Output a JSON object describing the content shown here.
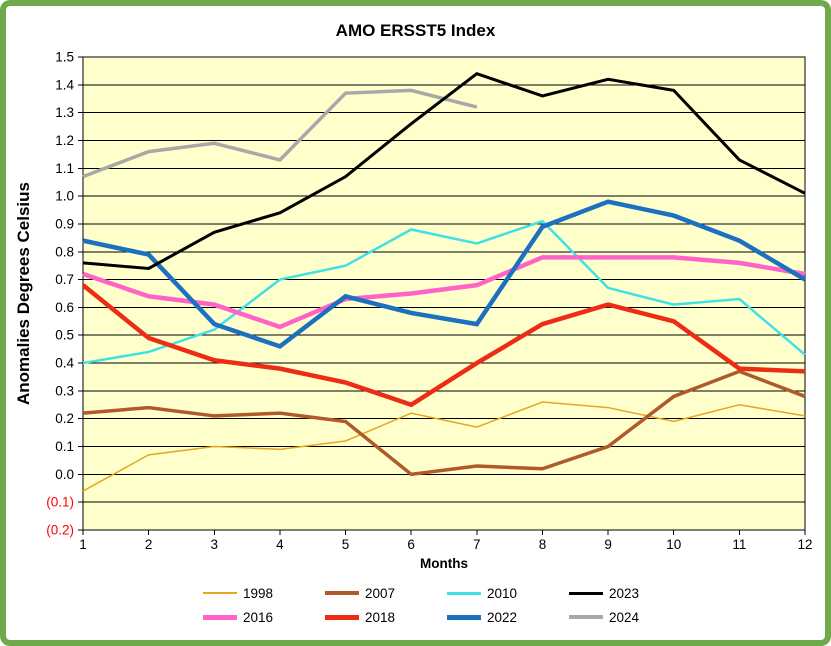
{
  "chart_data": {
    "type": "line",
    "title": "AMO ERSST5 Index",
    "xlabel": "Months",
    "ylabel": "Anomalies Degrees Celsius",
    "x": [
      1,
      2,
      3,
      4,
      5,
      6,
      7,
      8,
      9,
      10,
      11,
      12
    ],
    "ylim": [
      -0.2,
      1.5
    ],
    "ytick_step": 0.1,
    "y_tick_labels": [
      "1.5",
      "1.4",
      "1.3",
      "1.2",
      "1.1",
      "1.0",
      "0.9",
      "0.8",
      "0.7",
      "0.6",
      "0.5",
      "0.4",
      "0.3",
      "0.2",
      "0.1",
      "0.0",
      "(0.1)",
      "(0.2)"
    ],
    "negative_tick_color": "#FF0000",
    "plot_bg": "#FFFFCC",
    "grid": true,
    "grid_color": "#000000",
    "legend_position": "bottom",
    "series": [
      {
        "name": "1998",
        "color": "#E3A820",
        "width": 1.5,
        "values": [
          -0.06,
          0.07,
          0.1,
          0.09,
          0.12,
          0.22,
          0.17,
          0.26,
          0.24,
          0.19,
          0.25,
          0.21
        ]
      },
      {
        "name": "2007",
        "color": "#B05A2B",
        "width": 3.5,
        "values": [
          0.22,
          0.24,
          0.21,
          0.22,
          0.19,
          0.0,
          0.03,
          0.02,
          0.1,
          0.28,
          0.37,
          0.28
        ]
      },
      {
        "name": "2010",
        "color": "#3FE0E6",
        "width": 2.5,
        "values": [
          0.4,
          0.44,
          0.52,
          0.7,
          0.75,
          0.88,
          0.83,
          0.91,
          0.67,
          0.61,
          0.63,
          0.43
        ]
      },
      {
        "name": "2016",
        "color": "#FF63C8",
        "width": 4.5,
        "values": [
          0.72,
          0.64,
          0.61,
          0.53,
          0.63,
          0.65,
          0.68,
          0.78,
          0.78,
          0.78,
          0.76,
          0.72
        ]
      },
      {
        "name": "2018",
        "color": "#ED2C16",
        "width": 4.5,
        "values": [
          0.68,
          0.49,
          0.41,
          0.38,
          0.33,
          0.25,
          0.4,
          0.54,
          0.61,
          0.55,
          0.38,
          0.37
        ]
      },
      {
        "name": "2022",
        "color": "#1C70BF",
        "width": 4.5,
        "values": [
          0.84,
          0.79,
          0.54,
          0.46,
          0.64,
          0.58,
          0.54,
          0.89,
          0.98,
          0.93,
          0.84,
          0.7
        ]
      },
      {
        "name": "2024",
        "color": "#A8A8A8",
        "width": 3.5,
        "values": [
          1.07,
          1.16,
          1.19,
          1.13,
          1.37,
          1.38,
          1.32,
          null,
          null,
          null,
          null,
          null
        ]
      },
      {
        "name": "2023",
        "color": "#000000",
        "width": 3,
        "values": [
          0.76,
          0.74,
          0.87,
          0.94,
          1.07,
          1.26,
          1.44,
          1.36,
          1.42,
          1.38,
          1.13,
          1.01
        ]
      }
    ],
    "draw_order": [
      "1998",
      "2007",
      "2010",
      "2016",
      "2018",
      "2022",
      "2024",
      "2023"
    ],
    "legend_order": [
      "1998",
      "2007",
      "2010",
      "2023",
      "2016",
      "2018",
      "2022",
      "2024"
    ]
  },
  "frame": {
    "border_color": "#6FA94A",
    "background": "#FFFFFF"
  }
}
